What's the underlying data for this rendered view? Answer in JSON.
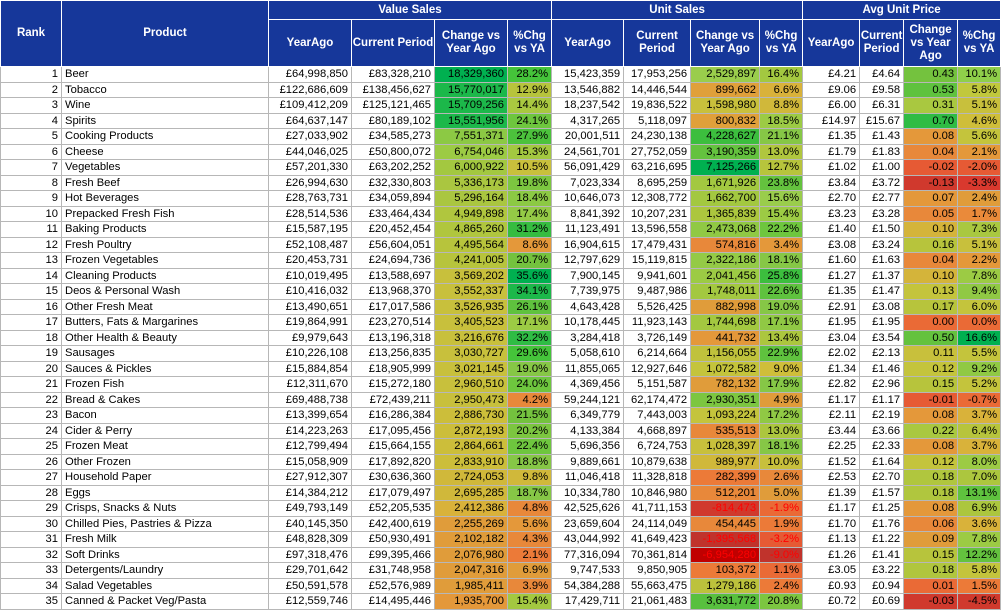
{
  "header": {
    "rank": "Rank",
    "product": "Product",
    "groups": {
      "value": "Value Sales",
      "unit": "Unit Sales",
      "avg": "Avg Unit Price"
    },
    "cols": {
      "year_ago": "YearAgo",
      "current_period": "Current Period",
      "change_vs_ya": "Change vs Year Ago",
      "pct_chg_vs_ya": "%Chg vs YA",
      "avg_current": "Current Period",
      "avg_change": "Change vs Year Ago"
    }
  },
  "rows": [
    {
      "rank": "1",
      "product": "Beer",
      "v_ya": "£64,998,850",
      "v_cp": "£83,328,210",
      "v_ch": "18,329,360",
      "v_pct": "28.2%",
      "u_ya": "15,423,359",
      "u_cp": "17,953,256",
      "u_ch": "2,529,897",
      "u_pct": "16.4%",
      "p_ya": "£4.21",
      "p_cp": "£4.64",
      "p_ch": "0.43",
      "p_pct": "10.1%",
      "c": [
        "#00b050",
        "#45c43a",
        "#9acd4c",
        "#a3c840",
        "#74c23e",
        "#8fcf4a"
      ]
    },
    {
      "rank": "2",
      "product": "Tobacco",
      "v_ya": "£122,686,609",
      "v_cp": "£138,456,627",
      "v_ch": "15,770,017",
      "v_pct": "12.9%",
      "u_ya": "13,546,882",
      "u_cp": "14,446,544",
      "u_ch": "899,662",
      "u_pct": "6.6%",
      "p_ya": "£9.06",
      "p_cp": "£9.58",
      "p_ch": "0.53",
      "p_pct": "5.8%",
      "c": [
        "#1cb84a",
        "#b7c43c",
        "#e0a03a",
        "#d9b23a",
        "#5fc23e",
        "#c1c83c"
      ]
    },
    {
      "rank": "3",
      "product": "Wine",
      "v_ya": "£109,412,209",
      "v_cp": "£125,121,465",
      "v_ch": "15,709,256",
      "v_pct": "14.4%",
      "u_ya": "18,237,542",
      "u_cp": "19,836,522",
      "u_ch": "1,598,980",
      "u_pct": "8.8%",
      "p_ya": "£6.00",
      "p_cp": "£6.31",
      "p_ch": "0.31",
      "p_pct": "5.1%",
      "c": [
        "#1cb84a",
        "#a9c840",
        "#c8c03c",
        "#d0b83a",
        "#a9c840",
        "#c8c03c"
      ]
    },
    {
      "rank": "4",
      "product": "Spirits",
      "v_ya": "£64,637,147",
      "v_cp": "£80,189,102",
      "v_ch": "15,551,956",
      "v_pct": "24.1%",
      "u_ya": "4,317,265",
      "u_cp": "5,118,097",
      "u_ch": "800,832",
      "u_pct": "18.5%",
      "p_ya": "£14.97",
      "p_cp": "£15.67",
      "p_ch": "0.70",
      "p_pct": "4.6%",
      "c": [
        "#1cb84a",
        "#6ec63e",
        "#e0a03a",
        "#9ccb44",
        "#2fbc44",
        "#cfbe3a"
      ]
    },
    {
      "rank": "5",
      "product": "Cooking Products",
      "v_ya": "£27,033,902",
      "v_cp": "£34,585,273",
      "v_ch": "7,551,371",
      "v_pct": "27.9%",
      "u_ya": "20,001,511",
      "u_cp": "24,230,138",
      "u_ch": "4,228,627",
      "u_pct": "21.1%",
      "p_ya": "£1.35",
      "p_cp": "£1.43",
      "p_ch": "0.08",
      "p_pct": "5.6%",
      "c": [
        "#8cc944",
        "#4cc23c",
        "#3cbe3e",
        "#86c746",
        "#e4983a",
        "#c4c43c"
      ]
    },
    {
      "rank": "6",
      "product": "Cheese",
      "v_ya": "£44,046,025",
      "v_cp": "£50,800,072",
      "v_ch": "6,754,046",
      "v_pct": "15.3%",
      "u_ya": "24,561,701",
      "u_cp": "27,752,059",
      "u_ch": "3,190,359",
      "u_pct": "13.0%",
      "p_ya": "£1.79",
      "p_cp": "£1.83",
      "p_ch": "0.04",
      "p_pct": "2.1%",
      "c": [
        "#9ccb44",
        "#a3c840",
        "#64c23e",
        "#b0c63e",
        "#e8883a",
        "#e4983a"
      ]
    },
    {
      "rank": "7",
      "product": "Vegetables",
      "v_ya": "£57,201,330",
      "v_cp": "£63,202,252",
      "v_ch": "6,000,922",
      "v_pct": "10.5%",
      "u_ya": "56,091,429",
      "u_cp": "63,216,695",
      "u_ch": "7,125,266",
      "u_pct": "12.7%",
      "p_ya": "£1.02",
      "p_cp": "£1.00",
      "p_ch": "-0.02",
      "p_pct": "-2.0%",
      "c": [
        "#a3c840",
        "#c8c03c",
        "#00b050",
        "#b7c43c",
        "#e65a34",
        "#e65a34"
      ]
    },
    {
      "rank": "8",
      "product": "Fresh Beef",
      "v_ya": "£26,994,630",
      "v_cp": "£32,330,803",
      "v_ch": "5,336,173",
      "v_pct": "19.8%",
      "u_ya": "7,023,334",
      "u_cp": "8,695,259",
      "u_ch": "1,671,926",
      "u_pct": "23.8%",
      "p_ya": "£3.84",
      "p_cp": "£3.72",
      "p_ch": "-0.13",
      "p_pct": "-3.3%",
      "c": [
        "#aac640",
        "#7cc640",
        "#a3c840",
        "#64c23e",
        "#d0392d",
        "#d9392e"
      ]
    },
    {
      "rank": "9",
      "product": "Hot Beverages",
      "v_ya": "£28,763,731",
      "v_cp": "£34,059,894",
      "v_ch": "5,296,164",
      "v_pct": "18.4%",
      "u_ya": "10,646,073",
      "u_cp": "12,308,772",
      "u_ch": "1,662,700",
      "u_pct": "15.6%",
      "p_ya": "£2.70",
      "p_cp": "£2.77",
      "p_ch": "0.07",
      "p_pct": "2.4%",
      "c": [
        "#aac640",
        "#8cc944",
        "#a3c840",
        "#9acd4c",
        "#e4983a",
        "#e09c3a"
      ]
    },
    {
      "rank": "10",
      "product": "Prepacked Fresh Fish",
      "v_ya": "£28,514,536",
      "v_cp": "£33,464,434",
      "v_ch": "4,949,898",
      "v_pct": "17.4%",
      "u_ya": "8,841,392",
      "u_cp": "10,207,231",
      "u_ch": "1,365,839",
      "u_pct": "15.4%",
      "p_ya": "£3.23",
      "p_cp": "£3.28",
      "p_ch": "0.05",
      "p_pct": "1.7%",
      "c": [
        "#b0c63e",
        "#94ca46",
        "#acc63e",
        "#9ccb44",
        "#e8883a",
        "#ea8a3a"
      ]
    },
    {
      "rank": "11",
      "product": "Baking Products",
      "v_ya": "£15,587,195",
      "v_cp": "£20,452,454",
      "v_ch": "4,865,260",
      "v_pct": "31.2%",
      "u_ya": "11,123,491",
      "u_cp": "13,596,558",
      "u_ch": "2,473,068",
      "u_pct": "22.2%",
      "p_ya": "£1.40",
      "p_cp": "£1.50",
      "p_ch": "0.10",
      "p_pct": "7.3%",
      "c": [
        "#b0c63e",
        "#36bc40",
        "#90c944",
        "#6ec63e",
        "#d4b43a",
        "#a9c840"
      ]
    },
    {
      "rank": "12",
      "product": "Fresh Poultry",
      "v_ya": "£52,108,487",
      "v_cp": "£56,604,051",
      "v_ch": "4,495,564",
      "v_pct": "8.6%",
      "u_ya": "16,904,615",
      "u_cp": "17,479,431",
      "u_ch": "574,816",
      "u_pct": "3.4%",
      "p_ya": "£3.08",
      "p_cp": "£3.24",
      "p_ch": "0.16",
      "p_pct": "5.1%",
      "c": [
        "#b7c43c",
        "#e4983a",
        "#e8883a",
        "#e4983a",
        "#b7c43c",
        "#c8c03c"
      ]
    },
    {
      "rank": "13",
      "product": "Frozen Vegetables",
      "v_ya": "£20,453,731",
      "v_cp": "£24,694,736",
      "v_ch": "4,241,005",
      "v_pct": "20.7%",
      "u_ya": "12,797,629",
      "u_cp": "15,119,815",
      "u_ch": "2,322,186",
      "u_pct": "18.1%",
      "p_ya": "£1.60",
      "p_cp": "£1.63",
      "p_ch": "0.04",
      "p_pct": "2.2%",
      "c": [
        "#b7c43c",
        "#74c23e",
        "#94ca46",
        "#86c746",
        "#e8883a",
        "#e4983a"
      ]
    },
    {
      "rank": "14",
      "product": "Cleaning Products",
      "v_ya": "£10,019,495",
      "v_cp": "£13,588,697",
      "v_ch": "3,569,202",
      "v_pct": "35.6%",
      "u_ya": "7,900,145",
      "u_cp": "9,941,601",
      "u_ch": "2,041,456",
      "u_pct": "25.8%",
      "p_ya": "£1.27",
      "p_cp": "£1.37",
      "p_ch": "0.10",
      "p_pct": "7.8%",
      "c": [
        "#c8c03c",
        "#00b050",
        "#9ccb44",
        "#3cbe3e",
        "#d4b43a",
        "#9ccb44"
      ]
    },
    {
      "rank": "15",
      "product": "Deos & Personal Wash",
      "v_ya": "£10,416,032",
      "v_cp": "£13,968,370",
      "v_ch": "3,552,337",
      "v_pct": "34.1%",
      "u_ya": "7,739,975",
      "u_cp": "9,487,986",
      "u_ch": "1,748,011",
      "u_pct": "22.6%",
      "p_ya": "£1.35",
      "p_cp": "£1.47",
      "p_ch": "0.13",
      "p_pct": "9.4%",
      "c": [
        "#c8c03c",
        "#1cb84a",
        "#a3c840",
        "#5fc23e",
        "#c4c43c",
        "#90c944"
      ]
    },
    {
      "rank": "16",
      "product": "Other Fresh Meat",
      "v_ya": "£13,490,651",
      "v_cp": "£17,017,586",
      "v_ch": "3,526,935",
      "v_pct": "26.1%",
      "u_ya": "4,643,428",
      "u_cp": "5,526,425",
      "u_ch": "882,998",
      "u_pct": "19.0%",
      "p_ya": "£2.91",
      "p_cp": "£3.08",
      "p_ch": "0.17",
      "p_pct": "6.0%",
      "c": [
        "#c8c03c",
        "#5fc23e",
        "#e09c3a",
        "#86c746",
        "#b7c43c",
        "#c4c43c"
      ]
    },
    {
      "rank": "17",
      "product": "Butters, Fats & Margarines",
      "v_ya": "£19,864,991",
      "v_cp": "£23,270,514",
      "v_ch": "3,405,523",
      "v_pct": "17.1%",
      "u_ya": "10,178,445",
      "u_cp": "11,923,143",
      "u_ch": "1,744,698",
      "u_pct": "17.1%",
      "p_ya": "£1.95",
      "p_cp": "£1.95",
      "p_ch": "0.00",
      "p_pct": "0.0%",
      "c": [
        "#c8c03c",
        "#9ccb44",
        "#a3c840",
        "#90c944",
        "#ea6a36",
        "#ea6a36"
      ]
    },
    {
      "rank": "18",
      "product": "Other Health & Beauty",
      "v_ya": "£9,979,643",
      "v_cp": "£13,196,318",
      "v_ch": "3,216,676",
      "v_pct": "32.2%",
      "u_ya": "3,284,418",
      "u_cp": "3,726,149",
      "u_ch": "441,732",
      "u_pct": "13.4%",
      "p_ya": "£3.04",
      "p_cp": "£3.54",
      "p_ch": "0.50",
      "p_pct": "16.6%",
      "c": [
        "#c8c03c",
        "#2fbc44",
        "#e4983a",
        "#acc63e",
        "#64c23e",
        "#00b050"
      ]
    },
    {
      "rank": "19",
      "product": "Sausages",
      "v_ya": "£10,226,108",
      "v_cp": "£13,256,835",
      "v_ch": "3,030,727",
      "v_pct": "29.6%",
      "u_ya": "5,058,610",
      "u_cp": "6,214,664",
      "u_ch": "1,156,055",
      "u_pct": "22.9%",
      "p_ya": "£2.02",
      "p_cp": "£2.13",
      "p_ch": "0.11",
      "p_pct": "5.5%",
      "c": [
        "#c8c03c",
        "#45c43a",
        "#c0c23c",
        "#5fc23e",
        "#c8c03c",
        "#c4c43c"
      ]
    },
    {
      "rank": "20",
      "product": "Sauces & Pickles",
      "v_ya": "£15,884,854",
      "v_cp": "£18,905,999",
      "v_ch": "3,021,145",
      "v_pct": "19.0%",
      "u_ya": "11,855,065",
      "u_cp": "12,927,646",
      "u_ch": "1,072,582",
      "u_pct": "9.0%",
      "p_ya": "£1.34",
      "p_cp": "£1.46",
      "p_ch": "0.12",
      "p_pct": "9.2%",
      "c": [
        "#c8c03c",
        "#86c746",
        "#c4c43c",
        "#cfbe3a",
        "#c4c43c",
        "#90c944"
      ]
    },
    {
      "rank": "21",
      "product": "Frozen Fish",
      "v_ya": "£12,311,670",
      "v_cp": "£15,272,180",
      "v_ch": "2,960,510",
      "v_pct": "24.0%",
      "u_ya": "4,369,456",
      "u_cp": "5,151,587",
      "u_ch": "782,132",
      "u_pct": "17.9%",
      "p_ya": "£2.82",
      "p_cp": "£2.96",
      "p_ch": "0.15",
      "p_pct": "5.2%",
      "c": [
        "#c8c03c",
        "#6ec63e",
        "#e09c3a",
        "#86c746",
        "#b7c43c",
        "#c4c43c"
      ]
    },
    {
      "rank": "22",
      "product": "Bread & Cakes",
      "v_ya": "£69,488,738",
      "v_cp": "£72,439,211",
      "v_ch": "2,950,473",
      "v_pct": "4.2%",
      "u_ya": "59,244,121",
      "u_cp": "62,174,472",
      "u_ch": "2,930,351",
      "u_pct": "4.9%",
      "p_ya": "£1.17",
      "p_cp": "£1.17",
      "p_ch": "-0.01",
      "p_pct": "-0.7%",
      "c": [
        "#c8c03c",
        "#e8883a",
        "#7cc640",
        "#e09c3a",
        "#e65a34",
        "#ea6a36"
      ]
    },
    {
      "rank": "23",
      "product": "Bacon",
      "v_ya": "£13,399,654",
      "v_cp": "£16,286,384",
      "v_ch": "2,886,730",
      "v_pct": "21.5%",
      "u_ya": "6,349,779",
      "u_cp": "7,443,003",
      "u_ch": "1,093,224",
      "u_pct": "17.2%",
      "p_ya": "£2.11",
      "p_cp": "£2.19",
      "p_ch": "0.08",
      "p_pct": "3.7%",
      "c": [
        "#ccbe3a",
        "#74c23e",
        "#c4c43c",
        "#90c944",
        "#e4983a",
        "#d9b23a"
      ]
    },
    {
      "rank": "24",
      "product": "Cider & Perry",
      "v_ya": "£14,223,263",
      "v_cp": "£17,095,456",
      "v_ch": "2,872,193",
      "v_pct": "20.2%",
      "u_ya": "4,133,384",
      "u_cp": "4,668,897",
      "u_ch": "535,513",
      "u_pct": "13.0%",
      "p_ya": "£3.44",
      "p_cp": "£3.66",
      "p_ch": "0.22",
      "p_pct": "6.4%",
      "c": [
        "#ccbe3a",
        "#7cc640",
        "#e8883a",
        "#acc63e",
        "#a9c840",
        "#b7c43c"
      ]
    },
    {
      "rank": "25",
      "product": "Frozen Meat",
      "v_ya": "£12,799,494",
      "v_cp": "£15,664,155",
      "v_ch": "2,864,661",
      "v_pct": "22.4%",
      "u_ya": "5,696,356",
      "u_cp": "6,724,753",
      "u_ch": "1,028,397",
      "u_pct": "18.1%",
      "p_ya": "£2.25",
      "p_cp": "£2.33",
      "p_ch": "0.08",
      "p_pct": "3.7%",
      "c": [
        "#ccbe3a",
        "#6ec63e",
        "#c8c03c",
        "#86c746",
        "#e4983a",
        "#d9b23a"
      ]
    },
    {
      "rank": "26",
      "product": "Other Frozen",
      "v_ya": "£15,058,909",
      "v_cp": "£17,892,820",
      "v_ch": "2,833,910",
      "v_pct": "18.8%",
      "u_ya": "9,889,661",
      "u_cp": "10,879,638",
      "u_ch": "989,977",
      "u_pct": "10.0%",
      "p_ya": "£1.52",
      "p_cp": "£1.64",
      "p_ch": "0.12",
      "p_pct": "8.0%",
      "c": [
        "#ccbe3a",
        "#86c746",
        "#d0b83a",
        "#c8c03c",
        "#c4c43c",
        "#9ccb44"
      ]
    },
    {
      "rank": "27",
      "product": "Household Paper",
      "v_ya": "£27,912,307",
      "v_cp": "£30,636,360",
      "v_ch": "2,724,053",
      "v_pct": "9.8%",
      "u_ya": "11,046,418",
      "u_cp": "11,328,818",
      "u_ch": "282,399",
      "u_pct": "2.6%",
      "p_ya": "£2.53",
      "p_cp": "£2.70",
      "p_ch": "0.18",
      "p_pct": "7.0%",
      "c": [
        "#d0b83a",
        "#d0b83a",
        "#ec7a38",
        "#e8883a",
        "#b0c63e",
        "#acc63e"
      ]
    },
    {
      "rank": "28",
      "product": "Eggs",
      "v_ya": "£14,384,212",
      "v_cp": "£17,079,497",
      "v_ch": "2,695,285",
      "v_pct": "18.7%",
      "u_ya": "10,334,780",
      "u_cp": "10,846,980",
      "u_ch": "512,201",
      "u_pct": "5.0%",
      "p_ya": "£1.39",
      "p_cp": "£1.57",
      "p_ch": "0.18",
      "p_pct": "13.1%",
      "c": [
        "#d0b83a",
        "#86c746",
        "#e8883a",
        "#e09c3a",
        "#b0c63e",
        "#5fc23e"
      ]
    },
    {
      "rank": "29",
      "product": "Crisps, Snacks & Nuts",
      "v_ya": "£49,793,149",
      "v_cp": "£52,205,535",
      "v_ch": "2,412,386",
      "v_pct": "4.8%",
      "u_ya": "42,525,626",
      "u_cp": "41,711,153",
      "u_ch": "-814,473",
      "u_pct": "-1.9%",
      "p_ya": "£1.17",
      "p_cp": "£1.25",
      "p_ch": "0.08",
      "p_pct": "6.9%",
      "c": [
        "#d9b23a",
        "#e8883a",
        "#d0392d",
        "#ea6a36",
        "#e4983a",
        "#acc63e"
      ]
    },
    {
      "rank": "30",
      "product": "Chilled Pies, Pastries & Pizza",
      "v_ya": "£40,145,350",
      "v_cp": "£42,400,619",
      "v_ch": "2,255,269",
      "v_pct": "5.6%",
      "u_ya": "23,659,604",
      "u_cp": "24,114,049",
      "u_ch": "454,445",
      "u_pct": "1.9%",
      "p_ya": "£1.70",
      "p_cp": "£1.76",
      "p_ch": "0.06",
      "p_pct": "3.6%",
      "c": [
        "#e09c3a",
        "#e4983a",
        "#e8883a",
        "#ec7a38",
        "#e8883a",
        "#d9b23a"
      ]
    },
    {
      "rank": "31",
      "product": "Fresh Milk",
      "v_ya": "£48,828,309",
      "v_cp": "£50,930,491",
      "v_ch": "2,102,182",
      "v_pct": "4.3%",
      "u_ya": "43,044,992",
      "u_cp": "41,649,423",
      "u_ch": "-1,395,568",
      "u_pct": "-3.2%",
      "p_ya": "£1.13",
      "p_cp": "£1.22",
      "p_ch": "0.09",
      "p_pct": "7.8%",
      "c": [
        "#e09c3a",
        "#e8883a",
        "#c0332c",
        "#e65a34",
        "#e09c3a",
        "#9ccb44"
      ]
    },
    {
      "rank": "32",
      "product": "Soft Drinks",
      "v_ya": "£97,318,476",
      "v_cp": "£99,395,466",
      "v_ch": "2,076,980",
      "v_pct": "2.1%",
      "u_ya": "77,316,094",
      "u_cp": "70,361,814",
      "u_ch": "-6,954,280",
      "u_pct": "-9.0%",
      "p_ya": "£1.26",
      "p_cp": "£1.41",
      "p_ch": "0.15",
      "p_pct": "12.2%",
      "c": [
        "#e09c3a",
        "#ec7a38",
        "#c00000",
        "#c0332c",
        "#b7c43c",
        "#64c23e"
      ]
    },
    {
      "rank": "33",
      "product": "Detergents/Laundry",
      "v_ya": "£29,701,642",
      "v_cp": "£31,748,958",
      "v_ch": "2,047,316",
      "v_pct": "6.9%",
      "u_ya": "9,747,533",
      "u_cp": "9,850,905",
      "u_ch": "103,372",
      "u_pct": "1.1%",
      "p_ya": "£3.05",
      "p_cp": "£3.22",
      "p_ch": "0.18",
      "p_pct": "5.8%",
      "c": [
        "#e09c3a",
        "#e09c3a",
        "#ec7a38",
        "#ea6a36",
        "#b0c63e",
        "#c4c43c"
      ]
    },
    {
      "rank": "34",
      "product": "Salad Vegetables",
      "v_ya": "£50,591,578",
      "v_cp": "£52,576,989",
      "v_ch": "1,985,411",
      "v_pct": "3.9%",
      "u_ya": "54,384,288",
      "u_cp": "55,663,475",
      "u_ch": "1,279,186",
      "u_pct": "2.4%",
      "p_ya": "£0.93",
      "p_cp": "£0.94",
      "p_ch": "0.01",
      "p_pct": "1.5%",
      "c": [
        "#e09c3a",
        "#e8883a",
        "#bcc23c",
        "#ec7a38",
        "#ea6a36",
        "#ec7a38"
      ]
    },
    {
      "rank": "35",
      "product": "Canned & Packet Veg/Pasta",
      "v_ya": "£12,559,746",
      "v_cp": "£14,495,446",
      "v_ch": "1,935,700",
      "v_pct": "15.4%",
      "u_ya": "17,429,711",
      "u_cp": "21,061,483",
      "u_ch": "3,631,772",
      "u_pct": "20.8%",
      "p_ya": "£0.72",
      "p_cp": "£0.69",
      "p_ch": "-0.03",
      "p_pct": "-4.5%",
      "c": [
        "#e4983a",
        "#a3c840",
        "#58c03e",
        "#7cc640",
        "#d0392d",
        "#d0392d"
      ]
    }
  ]
}
